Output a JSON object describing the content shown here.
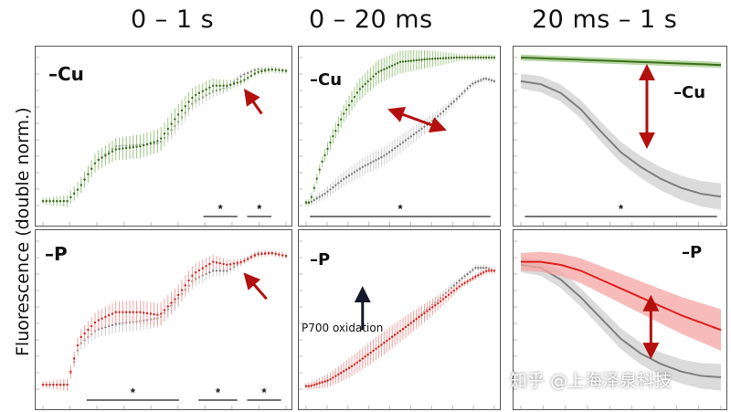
{
  "figure": {
    "columns": [
      "0 – 1 s",
      "0 – 20 ms",
      "20 ms – 1 s"
    ],
    "ylabel": "Fluorescence (double norm.)",
    "annotation": "P700 oxidation",
    "watermark": "知乎 @上海泽泉科技",
    "significance_mark": "*"
  },
  "colors": {
    "control": "#7f7f7f",
    "control_band": "#cfcfcf",
    "minus_cu": "#3f6e1e",
    "minus_cu_band": "#9fcb86",
    "minus_p": "#e0201c",
    "minus_p_band": "#f4a5a3",
    "arrow": "#b3100e",
    "annotation_arrow": "#15182a"
  },
  "chart_data": [
    {
      "id": "cu-full",
      "type": "scatter",
      "panel_label": "–Cu",
      "column": "0 – 1 s",
      "ylim": [
        0,
        1
      ],
      "series": [
        {
          "role": "control",
          "points": [
            [
              0.02,
              0.03
            ],
            [
              0.06,
              0.03
            ],
            [
              0.1,
              0.03
            ],
            [
              0.15,
              0.12
            ],
            [
              0.22,
              0.3
            ],
            [
              0.3,
              0.4
            ],
            [
              0.4,
              0.41
            ],
            [
              0.48,
              0.42
            ],
            [
              0.55,
              0.55
            ],
            [
              0.62,
              0.7
            ],
            [
              0.7,
              0.77
            ],
            [
              0.76,
              0.8
            ],
            [
              0.82,
              0.88
            ],
            [
              0.88,
              0.92
            ],
            [
              0.94,
              0.92
            ],
            [
              1.0,
              0.91
            ]
          ]
        },
        {
          "role": "treatment",
          "points": [
            [
              0.02,
              0.03
            ],
            [
              0.06,
              0.03
            ],
            [
              0.1,
              0.03
            ],
            [
              0.15,
              0.12
            ],
            [
              0.22,
              0.3
            ],
            [
              0.3,
              0.38
            ],
            [
              0.4,
              0.4
            ],
            [
              0.48,
              0.44
            ],
            [
              0.55,
              0.6
            ],
            [
              0.62,
              0.74
            ],
            [
              0.7,
              0.81
            ],
            [
              0.76,
              0.81
            ],
            [
              0.82,
              0.84
            ],
            [
              0.88,
              0.9
            ],
            [
              0.94,
              0.92
            ],
            [
              1.0,
              0.91
            ]
          ]
        }
      ],
      "significance_bars": [
        [
          0.66,
          0.8
        ],
        [
          0.84,
          0.94
        ]
      ],
      "arrows": [
        {
          "kind": "single",
          "from": [
            0.9,
            0.62
          ],
          "to": [
            0.84,
            0.76
          ]
        }
      ]
    },
    {
      "id": "cu-fast",
      "type": "scatter",
      "panel_label": "–Cu",
      "column": "0 – 20 ms",
      "ylim": [
        0,
        1
      ],
      "series": [
        {
          "role": "control",
          "points": [
            [
              0.02,
              0.02
            ],
            [
              0.1,
              0.08
            ],
            [
              0.2,
              0.18
            ],
            [
              0.3,
              0.26
            ],
            [
              0.42,
              0.34
            ],
            [
              0.55,
              0.46
            ],
            [
              0.68,
              0.58
            ],
            [
              0.8,
              0.72
            ],
            [
              0.88,
              0.82
            ],
            [
              0.95,
              0.86
            ],
            [
              1.0,
              0.84
            ]
          ]
        },
        {
          "role": "treatment",
          "points": [
            [
              0.02,
              0.02
            ],
            [
              0.08,
              0.28
            ],
            [
              0.14,
              0.46
            ],
            [
              0.2,
              0.62
            ],
            [
              0.28,
              0.78
            ],
            [
              0.38,
              0.9
            ],
            [
              0.5,
              0.97
            ],
            [
              0.65,
              0.99
            ],
            [
              0.8,
              1.0
            ],
            [
              0.9,
              1.0
            ],
            [
              1.0,
              1.0
            ]
          ]
        }
      ],
      "significance_bars": [
        [
          0.02,
          0.98
        ]
      ],
      "arrows": [
        {
          "kind": "double",
          "from": [
            0.46,
            0.64
          ],
          "to": [
            0.72,
            0.52
          ]
        }
      ]
    },
    {
      "id": "cu-slow",
      "type": "line",
      "panel_label": "–Cu",
      "column": "20 ms – 1 s",
      "ylim": [
        0,
        1
      ],
      "series": [
        {
          "role": "control",
          "points": [
            [
              0,
              0.84
            ],
            [
              0.1,
              0.82
            ],
            [
              0.2,
              0.76
            ],
            [
              0.3,
              0.65
            ],
            [
              0.4,
              0.5
            ],
            [
              0.5,
              0.36
            ],
            [
              0.6,
              0.26
            ],
            [
              0.7,
              0.18
            ],
            [
              0.8,
              0.12
            ],
            [
              0.9,
              0.08
            ],
            [
              1.0,
              0.06
            ]
          ]
        },
        {
          "role": "treatment",
          "points": [
            [
              0,
              1.0
            ],
            [
              0.2,
              0.99
            ],
            [
              0.4,
              0.98
            ],
            [
              0.6,
              0.97
            ],
            [
              0.8,
              0.96
            ],
            [
              1.0,
              0.95
            ]
          ]
        }
      ],
      "significance_bars": [
        [
          0.02,
          0.98
        ]
      ],
      "arrows": [
        {
          "kind": "double",
          "from": [
            0.63,
            0.92
          ],
          "to": [
            0.63,
            0.42
          ]
        }
      ]
    },
    {
      "id": "p-full",
      "type": "scatter",
      "panel_label": "–P",
      "column": "0 – 1 s",
      "ylim": [
        0,
        1
      ],
      "series": [
        {
          "role": "control",
          "points": [
            [
              0.02,
              0.03
            ],
            [
              0.06,
              0.03
            ],
            [
              0.1,
              0.03
            ],
            [
              0.15,
              0.3
            ],
            [
              0.22,
              0.4
            ],
            [
              0.3,
              0.44
            ],
            [
              0.4,
              0.46
            ],
            [
              0.48,
              0.48
            ],
            [
              0.55,
              0.6
            ],
            [
              0.62,
              0.74
            ],
            [
              0.7,
              0.8
            ],
            [
              0.76,
              0.8
            ],
            [
              0.82,
              0.86
            ],
            [
              0.88,
              0.92
            ],
            [
              0.94,
              0.92
            ],
            [
              1.0,
              0.9
            ]
          ]
        },
        {
          "role": "treatment",
          "points": [
            [
              0.02,
              0.03
            ],
            [
              0.06,
              0.03
            ],
            [
              0.1,
              0.03
            ],
            [
              0.15,
              0.34
            ],
            [
              0.22,
              0.46
            ],
            [
              0.3,
              0.52
            ],
            [
              0.4,
              0.52
            ],
            [
              0.48,
              0.5
            ],
            [
              0.55,
              0.62
            ],
            [
              0.62,
              0.78
            ],
            [
              0.7,
              0.86
            ],
            [
              0.76,
              0.84
            ],
            [
              0.82,
              0.86
            ],
            [
              0.88,
              0.91
            ],
            [
              0.94,
              0.92
            ],
            [
              1.0,
              0.9
            ]
          ]
        }
      ],
      "significance_bars": [
        [
          0.18,
          0.56
        ],
        [
          0.64,
          0.8
        ],
        [
          0.84,
          0.98
        ]
      ],
      "arrows": [
        {
          "kind": "single",
          "from": [
            0.92,
            0.61
          ],
          "to": [
            0.84,
            0.76
          ]
        }
      ]
    },
    {
      "id": "p-fast",
      "type": "scatter",
      "panel_label": "–P",
      "column": "0 – 20 ms",
      "ylim": [
        0,
        1
      ],
      "series": [
        {
          "role": "control",
          "points": [
            [
              0.02,
              0.02
            ],
            [
              0.12,
              0.06
            ],
            [
              0.25,
              0.16
            ],
            [
              0.4,
              0.3
            ],
            [
              0.55,
              0.44
            ],
            [
              0.7,
              0.6
            ],
            [
              0.82,
              0.74
            ],
            [
              0.9,
              0.82
            ],
            [
              0.96,
              0.82
            ],
            [
              1.0,
              0.8
            ]
          ]
        },
        {
          "role": "treatment",
          "points": [
            [
              0.02,
              0.02
            ],
            [
              0.12,
              0.06
            ],
            [
              0.25,
              0.16
            ],
            [
              0.4,
              0.3
            ],
            [
              0.55,
              0.44
            ],
            [
              0.7,
              0.58
            ],
            [
              0.82,
              0.7
            ],
            [
              0.9,
              0.76
            ],
            [
              0.96,
              0.8
            ],
            [
              1.0,
              0.8
            ]
          ]
        }
      ],
      "significance_bars": [],
      "arrows": [
        {
          "kind": "annotation",
          "from": [
            0.3,
            0.4
          ],
          "to": [
            0.3,
            0.66
          ]
        }
      ]
    },
    {
      "id": "p-slow",
      "type": "line",
      "panel_label": "–P",
      "column": "20 ms – 1 s",
      "ylim": [
        0,
        1
      ],
      "series": [
        {
          "role": "control",
          "points": [
            [
              0,
              0.84
            ],
            [
              0.1,
              0.82
            ],
            [
              0.2,
              0.74
            ],
            [
              0.3,
              0.62
            ],
            [
              0.4,
              0.48
            ],
            [
              0.5,
              0.34
            ],
            [
              0.6,
              0.24
            ],
            [
              0.7,
              0.17
            ],
            [
              0.8,
              0.12
            ],
            [
              0.9,
              0.09
            ],
            [
              1.0,
              0.08
            ]
          ]
        },
        {
          "role": "treatment",
          "points": [
            [
              0,
              0.86
            ],
            [
              0.1,
              0.86
            ],
            [
              0.2,
              0.84
            ],
            [
              0.3,
              0.8
            ],
            [
              0.4,
              0.74
            ],
            [
              0.5,
              0.68
            ],
            [
              0.6,
              0.62
            ],
            [
              0.7,
              0.56
            ],
            [
              0.8,
              0.5
            ],
            [
              0.9,
              0.45
            ],
            [
              1.0,
              0.4
            ]
          ]
        }
      ],
      "significance_bars": [],
      "arrows": [
        {
          "kind": "double",
          "from": [
            0.65,
            0.6
          ],
          "to": [
            0.65,
            0.24
          ]
        }
      ]
    }
  ]
}
